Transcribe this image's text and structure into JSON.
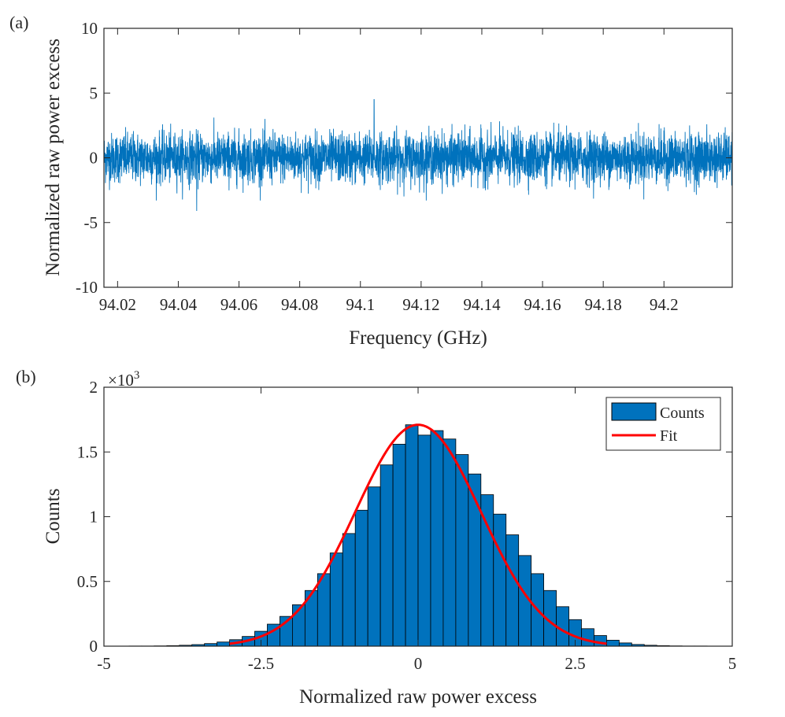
{
  "colors": {
    "signal": "#0072BD",
    "bar_fill": "#0072BD",
    "bar_edge": "#000000",
    "fit": "#FF0000",
    "axis": "#262626"
  },
  "chart_data": [
    {
      "panel_label": "(a)",
      "type": "line",
      "xlabel": "Frequency (GHz)",
      "ylabel": "Normalized raw power excess",
      "xlim": [
        94.0155,
        94.2225
      ],
      "ylim": [
        -10,
        10
      ],
      "x_ticks": [
        94.02,
        94.04,
        94.06,
        94.08,
        94.1,
        94.12,
        94.14,
        94.16,
        94.18,
        94.2
      ],
      "x_tick_labels": [
        "94.02",
        "94.04",
        "94.06",
        "94.08",
        "94.1",
        "94.12",
        "94.14",
        "94.16",
        "94.18",
        "94.2"
      ],
      "y_ticks": [
        10,
        5,
        0,
        -5,
        -10
      ],
      "y_tick_labels": [
        "10",
        "5",
        "0",
        "-5",
        "-10"
      ],
      "grid": false,
      "series": [
        {
          "description_of_values": "dense noise trace, approximately zero-mean unit-variance across the full frequency range",
          "typical_range": [
            -2.5,
            2.5
          ],
          "peak_max": 4.5,
          "peak_max_at_x": 94.1045,
          "peak_min": -4.1
        }
      ]
    },
    {
      "panel_label": "(b)",
      "type": "bar",
      "xlabel": "Normalized raw power excess",
      "ylabel": "Counts",
      "y_multiplier_label": "×10",
      "y_multiplier_exponent": "3",
      "xlim": [
        -5,
        5
      ],
      "ylim": [
        0,
        2000
      ],
      "x_ticks": [
        -5,
        -2.5,
        0,
        2.5,
        5
      ],
      "x_tick_labels": [
        "-5",
        "-2.5",
        "0",
        "2.5",
        "5"
      ],
      "y_ticks": [
        2000,
        1500,
        1000,
        500,
        0
      ],
      "y_tick_labels": [
        "2",
        "1.5",
        "1",
        "0.5",
        "0"
      ],
      "grid": false,
      "legend": {
        "position": "top-right",
        "entries": [
          "Counts",
          "Fit"
        ]
      },
      "bin_width": 0.2,
      "bin_centers": [
        -4.5,
        -4.3,
        -4.1,
        -3.9,
        -3.7,
        -3.5,
        -3.3,
        -3.1,
        -2.9,
        -2.7,
        -2.5,
        -2.3,
        -2.1,
        -1.9,
        -1.7,
        -1.5,
        -1.3,
        -1.1,
        -0.9,
        -0.7,
        -0.5,
        -0.3,
        -0.1,
        0.1,
        0.3,
        0.5,
        0.7,
        0.9,
        1.1,
        1.3,
        1.5,
        1.7,
        1.9,
        2.1,
        2.3,
        2.5,
        2.7,
        2.9,
        3.1,
        3.3,
        3.5,
        3.7,
        3.9,
        4.1,
        4.3,
        4.5
      ],
      "series": [
        {
          "name": "Counts",
          "values": [
            1,
            1,
            2,
            4,
            7,
            12,
            20,
            32,
            50,
            75,
            115,
            170,
            230,
            320,
            430,
            560,
            720,
            870,
            1050,
            1230,
            1400,
            1560,
            1710,
            1630,
            1665,
            1600,
            1480,
            1330,
            1170,
            1020,
            860,
            700,
            560,
            430,
            305,
            205,
            135,
            82,
            46,
            25,
            13,
            7,
            4,
            2,
            1,
            1
          ]
        },
        {
          "name": "Fit",
          "kind": "gaussian",
          "amplitude": 1710,
          "mean": 0,
          "sigma": 1,
          "x_range": [
            -3,
            3
          ]
        }
      ]
    }
  ]
}
